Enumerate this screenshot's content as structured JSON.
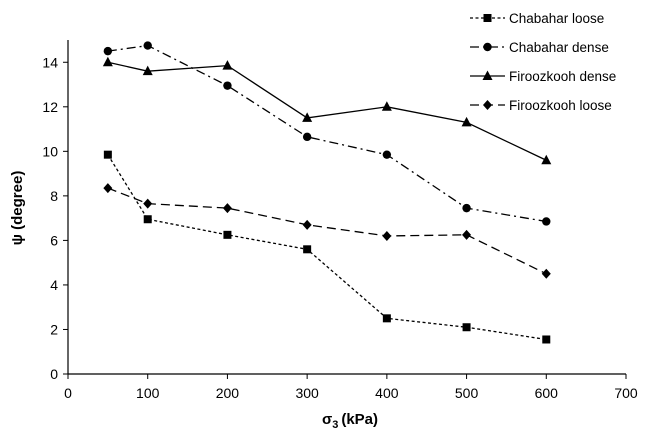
{
  "chart_data": {
    "type": "line",
    "title": "",
    "xlabel": "σ3 (kPa)",
    "xlabel_main": "σ",
    "xlabel_sub": "3",
    "xlabel_unit": "(kPa)",
    "ylabel": "ψ (degree)",
    "xlim": [
      0,
      700
    ],
    "ylim": [
      0,
      15
    ],
    "x_ticks": [
      "0",
      "100",
      "200",
      "300",
      "400",
      "500",
      "600",
      "700"
    ],
    "y_ticks": [
      "0",
      "2",
      "4",
      "6",
      "8",
      "10",
      "12",
      "14"
    ],
    "grid": false,
    "legend_position": "top-right",
    "series": [
      {
        "name": "Chabahar loose",
        "marker": "square",
        "dash": "short-dash",
        "x": [
          50,
          100,
          200,
          300,
          400,
          500,
          600
        ],
        "values": [
          9.85,
          6.95,
          6.25,
          5.6,
          2.5,
          2.1,
          1.55
        ]
      },
      {
        "name": "Chabahar dense",
        "marker": "circle",
        "dash": "dash-dot",
        "x": [
          50,
          100,
          200,
          300,
          400,
          500,
          600
        ],
        "values": [
          14.5,
          14.75,
          12.95,
          10.65,
          9.85,
          7.45,
          6.85
        ]
      },
      {
        "name": "Firoozkooh dense",
        "marker": "triangle",
        "dash": "solid",
        "x": [
          50,
          100,
          200,
          300,
          400,
          500,
          600
        ],
        "values": [
          14.0,
          13.6,
          13.85,
          11.5,
          12.0,
          11.3,
          9.6
        ]
      },
      {
        "name": "Firoozkooh loose",
        "marker": "diamond",
        "dash": "long-dash",
        "x": [
          50,
          100,
          200,
          300,
          400,
          500,
          600
        ],
        "values": [
          8.35,
          7.65,
          7.45,
          6.7,
          6.2,
          6.25,
          4.5
        ]
      }
    ]
  }
}
